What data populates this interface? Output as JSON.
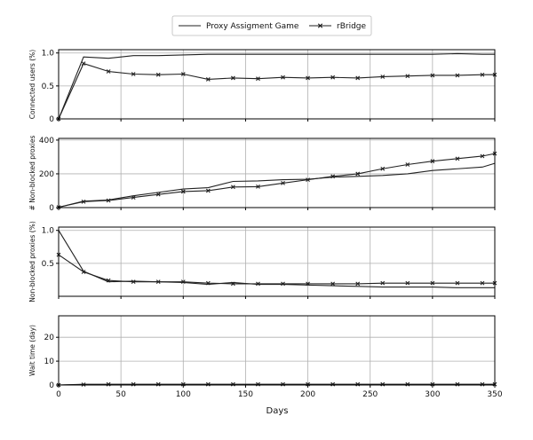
{
  "chart_data": {
    "type": "line",
    "legend": {
      "position": "top-center",
      "entries": [
        {
          "label": "Proxy Assigment Game",
          "marker": "none"
        },
        {
          "label": "rBridge",
          "marker": "x"
        }
      ]
    },
    "grid": true,
    "xlabel": "Days",
    "xlim": [
      0,
      350
    ],
    "xticks": [
      0,
      50,
      100,
      150,
      200,
      250,
      300,
      350
    ],
    "panels": [
      {
        "ylabel": "Connected users (%)",
        "ylim": [
          0,
          1.05
        ],
        "yticks": [
          0,
          0.5,
          1.0
        ],
        "ytick_labels": [
          "0",
          "0.5",
          "1.0"
        ],
        "series": [
          {
            "name": "Proxy Assigment Game",
            "x": [
              0,
              20,
              40,
              60,
              80,
              100,
              120,
              140,
              160,
              180,
              200,
              220,
              240,
              260,
              280,
              300,
              320,
              340,
              350
            ],
            "y": [
              0.0,
              0.94,
              0.92,
              0.96,
              0.96,
              0.97,
              0.98,
              0.98,
              0.98,
              0.98,
              0.98,
              0.98,
              0.98,
              0.98,
              0.98,
              0.98,
              0.99,
              0.98,
              0.98
            ]
          },
          {
            "name": "rBridge",
            "x": [
              0,
              20,
              40,
              60,
              80,
              100,
              120,
              140,
              160,
              180,
              200,
              220,
              240,
              260,
              280,
              300,
              320,
              340,
              350
            ],
            "y": [
              0.0,
              0.84,
              0.72,
              0.68,
              0.67,
              0.68,
              0.6,
              0.62,
              0.61,
              0.63,
              0.62,
              0.63,
              0.62,
              0.64,
              0.65,
              0.66,
              0.66,
              0.67,
              0.67
            ]
          }
        ]
      },
      {
        "ylabel": "# Non-blocked proxies",
        "ylim": [
          0,
          410
        ],
        "yticks": [
          0,
          200,
          400
        ],
        "ytick_labels": [
          "0",
          "200",
          "400"
        ],
        "series": [
          {
            "name": "Proxy Assigment Game",
            "x": [
              0,
              20,
              40,
              60,
              80,
              100,
              120,
              140,
              160,
              180,
              200,
              220,
              240,
              260,
              280,
              300,
              320,
              340,
              350
            ],
            "y": [
              2,
              38,
              45,
              70,
              90,
              110,
              118,
              155,
              158,
              165,
              168,
              180,
              185,
              190,
              200,
              220,
              230,
              240,
              262
            ]
          },
          {
            "name": "rBridge",
            "x": [
              0,
              20,
              40,
              60,
              80,
              100,
              120,
              140,
              160,
              180,
              200,
              220,
              240,
              260,
              280,
              300,
              320,
              340,
              350
            ],
            "y": [
              2,
              35,
              42,
              60,
              78,
              95,
              100,
              122,
              124,
              145,
              165,
              185,
              200,
              230,
              255,
              275,
              290,
              305,
              320
            ]
          }
        ]
      },
      {
        "ylabel": "Non-blocked proxies (%)",
        "ylim": [
          0,
          1.05
        ],
        "yticks": [
          0.5,
          1.0
        ],
        "ytick_labels": [
          "0.5",
          "1.0"
        ],
        "series": [
          {
            "name": "Proxy Assigment Game",
            "x": [
              0,
              20,
              40,
              60,
              80,
              100,
              120,
              140,
              160,
              180,
              200,
              220,
              240,
              260,
              280,
              300,
              320,
              340,
              350
            ],
            "y": [
              1.0,
              0.38,
              0.22,
              0.23,
              0.22,
              0.21,
              0.18,
              0.21,
              0.18,
              0.18,
              0.17,
              0.16,
              0.15,
              0.14,
              0.14,
              0.14,
              0.13,
              0.13,
              0.13
            ]
          },
          {
            "name": "rBridge",
            "x": [
              0,
              20,
              40,
              60,
              80,
              100,
              120,
              140,
              160,
              180,
              200,
              220,
              240,
              260,
              280,
              300,
              320,
              340,
              350
            ],
            "y": [
              0.63,
              0.37,
              0.24,
              0.22,
              0.22,
              0.22,
              0.2,
              0.19,
              0.19,
              0.19,
              0.19,
              0.19,
              0.19,
              0.2,
              0.2,
              0.2,
              0.2,
              0.2,
              0.2
            ]
          }
        ]
      },
      {
        "ylabel": "Wait time (day)",
        "ylim": [
          0,
          29
        ],
        "yticks": [
          0,
          10,
          20
        ],
        "ytick_labels": [
          "0",
          "10",
          "20"
        ],
        "series": [
          {
            "name": "Proxy Assigment Game",
            "x": [
              0,
              20,
              40,
              60,
              80,
              100,
              120,
              140,
              160,
              180,
              200,
              220,
              240,
              260,
              280,
              300,
              320,
              340,
              350
            ],
            "y": [
              0,
              0.3,
              0.2,
              0.2,
              0.2,
              0.2,
              0.2,
              0.2,
              0.2,
              0.2,
              0.2,
              0.2,
              0.2,
              0.2,
              0.2,
              0.2,
              0.2,
              0.2,
              0.2
            ]
          },
          {
            "name": "rBridge",
            "x": [
              0,
              20,
              40,
              60,
              80,
              100,
              120,
              140,
              160,
              180,
              200,
              220,
              240,
              260,
              280,
              300,
              320,
              340,
              350
            ],
            "y": [
              0,
              0.2,
              0.3,
              0.3,
              0.3,
              0.3,
              0.3,
              0.3,
              0.3,
              0.3,
              0.3,
              0.3,
              0.3,
              0.3,
              0.3,
              0.3,
              0.3,
              0.3,
              0.3
            ]
          }
        ]
      }
    ]
  }
}
